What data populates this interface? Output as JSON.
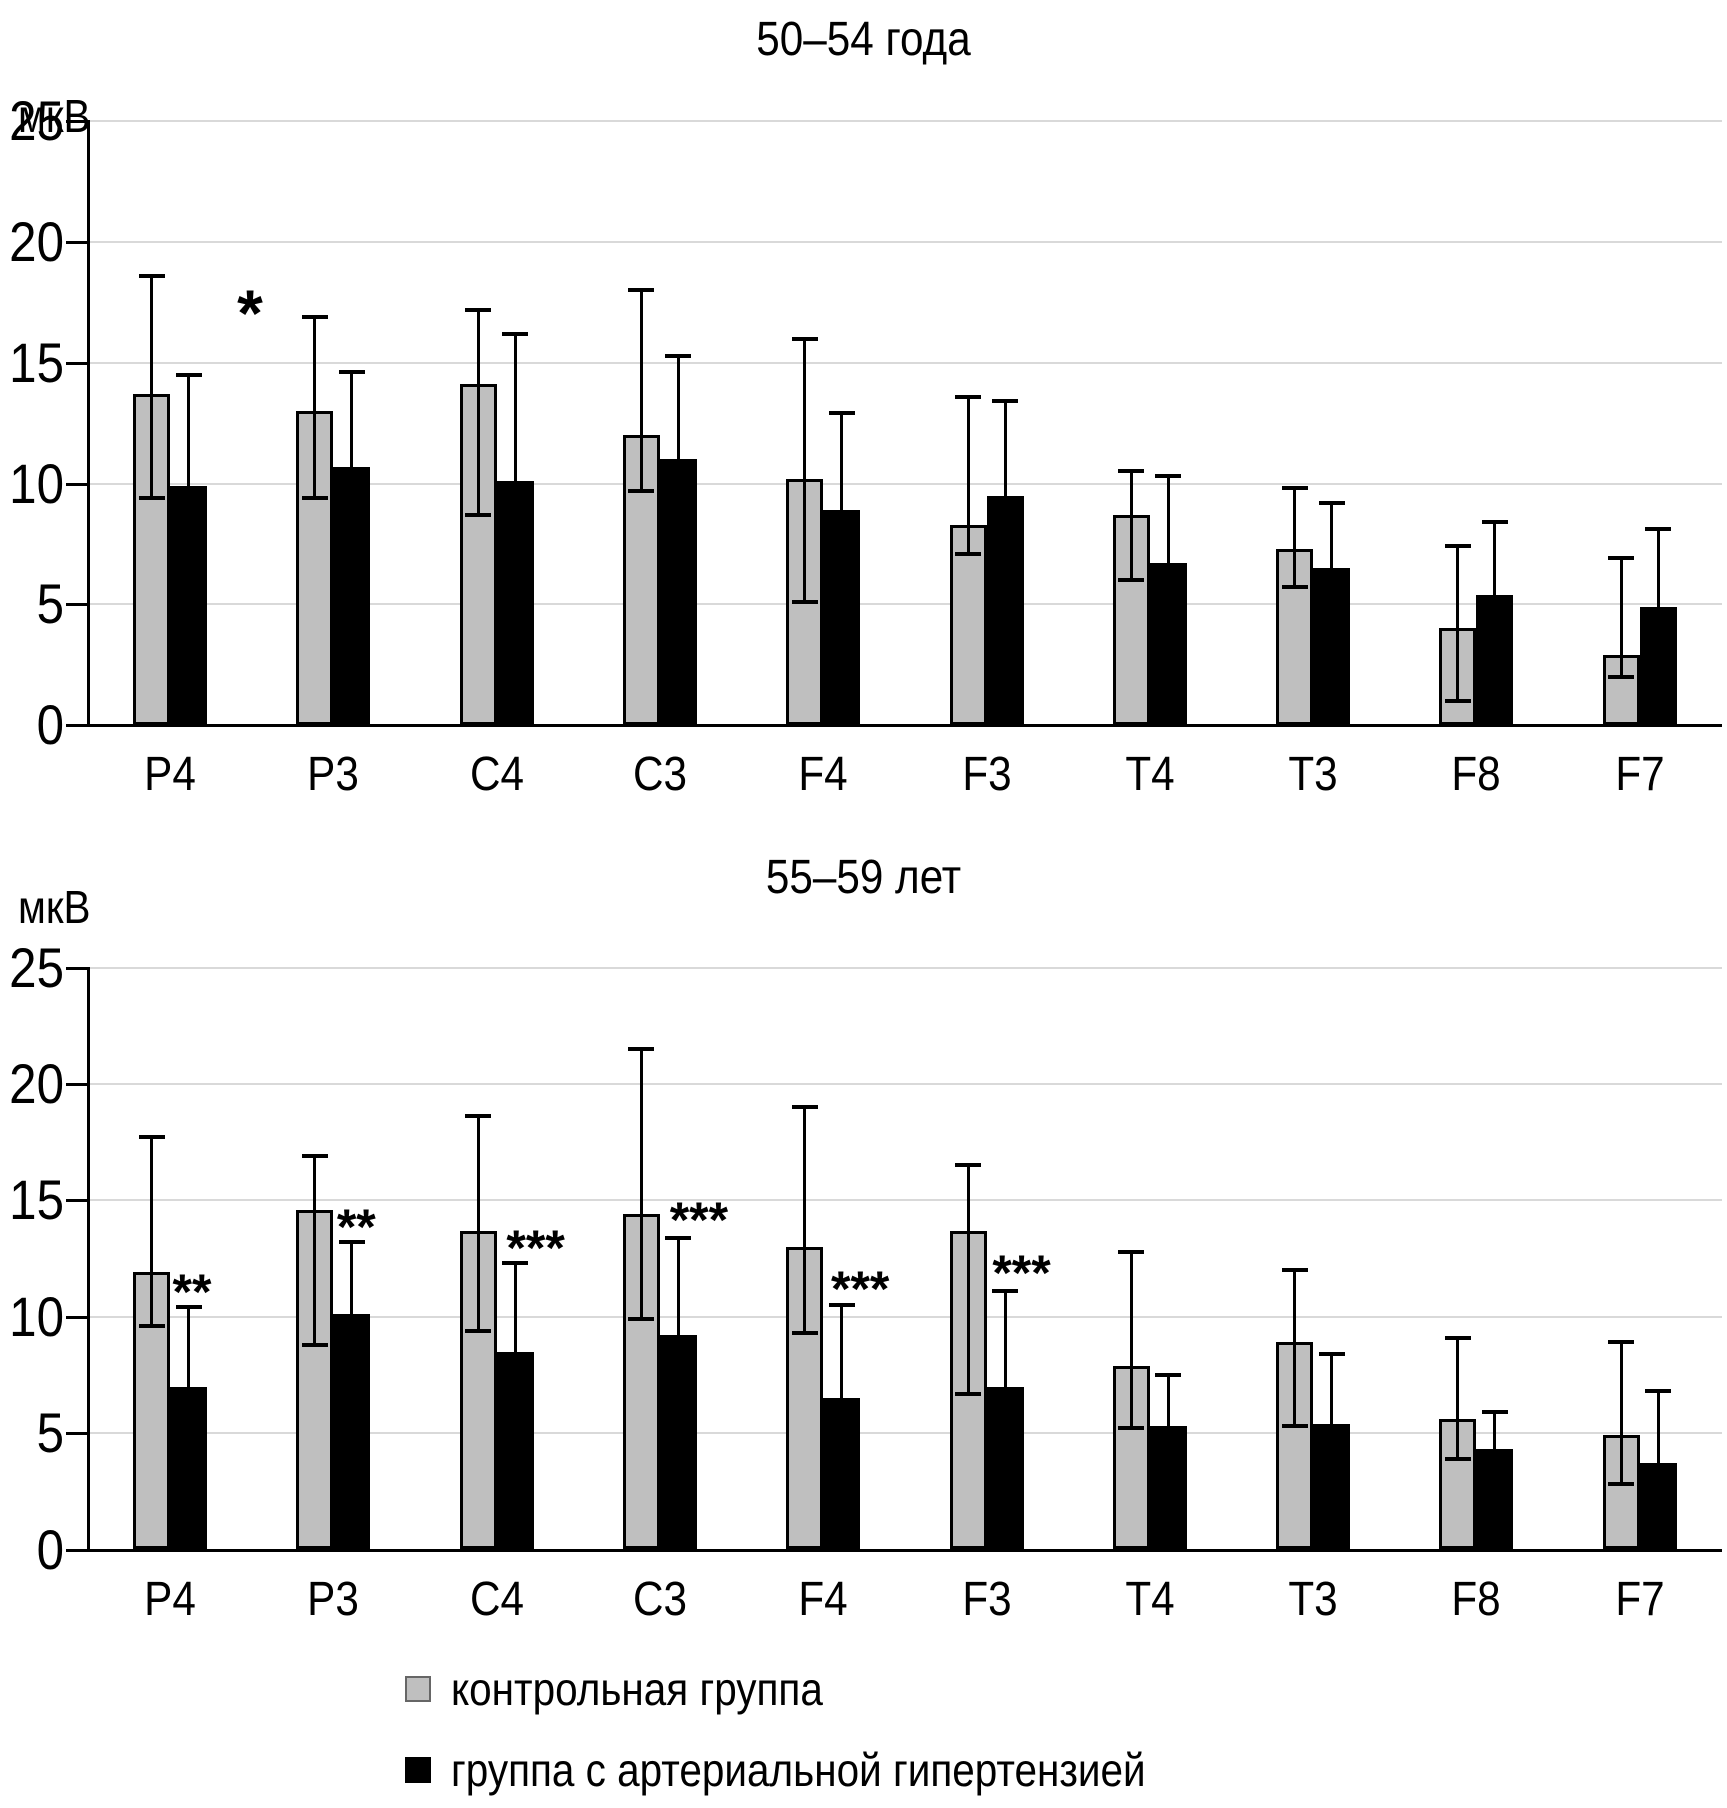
{
  "chart_data": [
    {
      "type": "bar",
      "title": "50–54 года",
      "ylabel": "мкВ",
      "xlabel": "",
      "ylim": [
        0,
        25
      ],
      "ytick_step": 5,
      "grid": true,
      "legend_position": "bottom",
      "categories": [
        "P4",
        "P3",
        "C4",
        "C3",
        "F4",
        "F3",
        "T4",
        "T3",
        "F8",
        "F7"
      ],
      "series": [
        {
          "name": "контрольная группа",
          "color": "#BFBFBF",
          "border_color": "#000000",
          "values": [
            13.7,
            13.0,
            14.1,
            12.0,
            10.2,
            8.3,
            8.7,
            7.3,
            4.0,
            2.9
          ],
          "err_low": [
            9.4,
            9.4,
            8.7,
            9.7,
            5.1,
            7.1,
            6.0,
            5.7,
            1.0,
            2.0
          ],
          "err_high": [
            18.6,
            16.9,
            17.2,
            18.0,
            16.0,
            13.6,
            10.5,
            9.8,
            7.4,
            6.9
          ]
        },
        {
          "name": "группа с артериальной гипертензией",
          "color": "#000000",
          "values": [
            9.9,
            10.7,
            10.1,
            11.0,
            8.9,
            9.5,
            6.7,
            6.5,
            5.4,
            4.9
          ],
          "err_high": [
            14.5,
            14.6,
            16.2,
            15.3,
            12.9,
            13.4,
            10.3,
            9.2,
            8.4,
            8.1
          ]
        }
      ],
      "annotations": [
        {
          "text": "*",
          "category_index": 0,
          "value": 17.6,
          "dx": 80
        }
      ]
    },
    {
      "type": "bar",
      "title": "55–59 лет",
      "ylabel": "мкВ",
      "xlabel": "",
      "ylim": [
        0,
        25
      ],
      "ytick_step": 5,
      "grid": true,
      "legend_position": "bottom",
      "categories": [
        "P4",
        "P3",
        "C4",
        "C3",
        "F4",
        "F3",
        "T4",
        "T3",
        "F8",
        "F7"
      ],
      "series": [
        {
          "name": "контрольная группа",
          "color": "#BFBFBF",
          "border_color": "#000000",
          "values": [
            11.9,
            14.6,
            13.7,
            14.4,
            13.0,
            13.7,
            7.9,
            8.9,
            5.6,
            4.9
          ],
          "err_low": [
            9.6,
            8.8,
            9.4,
            9.9,
            9.3,
            6.7,
            5.2,
            5.3,
            3.9,
            2.8
          ],
          "err_high": [
            17.7,
            16.9,
            18.6,
            21.5,
            19.0,
            16.5,
            12.8,
            12.0,
            9.1,
            8.9
          ]
        },
        {
          "name": "группа с артериальной гипертензией",
          "color": "#000000",
          "values": [
            7.0,
            10.1,
            8.5,
            9.2,
            6.5,
            7.0,
            5.3,
            5.4,
            4.3,
            3.7
          ],
          "err_high": [
            10.4,
            13.2,
            12.3,
            13.4,
            10.5,
            11.1,
            7.5,
            8.4,
            5.9,
            6.8
          ]
        }
      ],
      "annotations": [
        {
          "text": "**",
          "category_index": 0,
          "value": 11.5,
          "dx": 22
        },
        {
          "text": "**",
          "category_index": 1,
          "value": 14.3,
          "dx": 23
        },
        {
          "text": "***",
          "category_index": 2,
          "value": 13.4,
          "dx": 39
        },
        {
          "text": "***",
          "category_index": 3,
          "value": 14.6,
          "dx": 39
        },
        {
          "text": "***",
          "category_index": 4,
          "value": 11.6,
          "dx": 37
        },
        {
          "text": "***",
          "category_index": 5,
          "value": 12.3,
          "dx": 35
        }
      ]
    }
  ]
}
